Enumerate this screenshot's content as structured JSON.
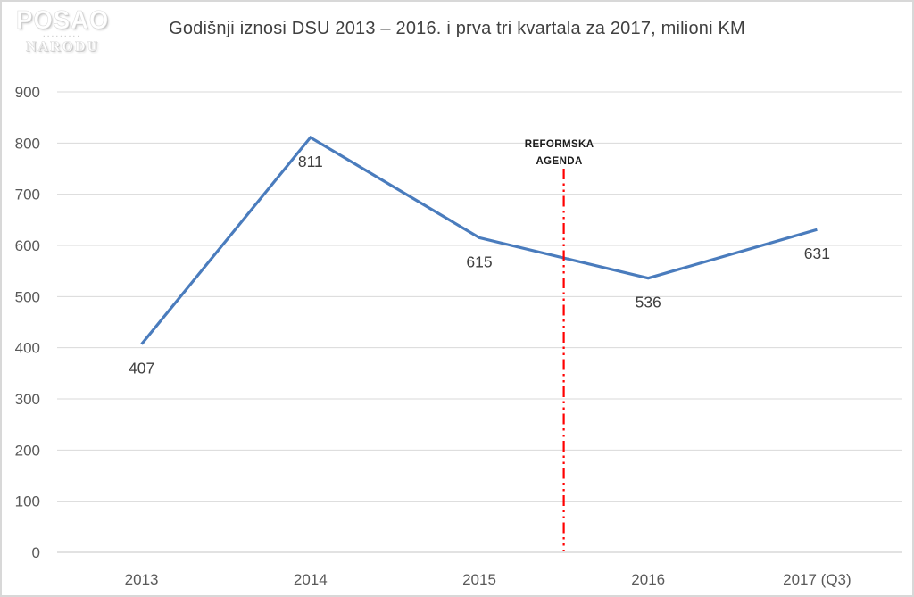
{
  "logo": {
    "primary": "POSAO",
    "separator": "▪▪▪▪▪▪▪▪▪",
    "secondary": "NARODU"
  },
  "chart_data": {
    "type": "line",
    "title": "Godišnji iznosi DSU 2013 – 2016. i prva tri kvartala za 2017, milioni KM",
    "categories": [
      "2013",
      "2014",
      "2015",
      "2016",
      "2017 (Q3)"
    ],
    "series": [
      {
        "values": [
          407,
          811,
          615,
          536,
          631
        ]
      }
    ],
    "data_labels": [
      "407",
      "811",
      "615",
      "536",
      "631"
    ],
    "ylim": [
      0,
      900
    ],
    "ytick_step": 100,
    "yticks": [
      0,
      100,
      200,
      300,
      400,
      500,
      600,
      700,
      800,
      900
    ],
    "grid": "horizontal-only",
    "legend": "none",
    "annotation": {
      "label_lines": [
        "REFORMSKA",
        "AGENDA"
      ],
      "x_index": 2.5,
      "between_categories": [
        "2015",
        "2016"
      ],
      "line_style": "dash-dot-dot",
      "color": "#FF0000",
      "text_color": "#1a1a1a"
    },
    "colors": {
      "line": "#4A7CBD",
      "grid": "#D9D9D9",
      "axis_line": "#C6C6C6",
      "tick_label": "#595959",
      "data_label": "#404040"
    }
  }
}
